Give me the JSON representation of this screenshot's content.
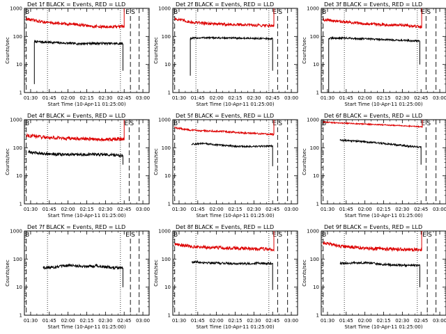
{
  "figure": {
    "background": "#ffffff"
  },
  "common": {
    "ylabel": "Counts/sec",
    "xlabel": "Start Time (10-Apr-11 01:25:00)",
    "x_tick_labels": [
      "01:30",
      "01:45",
      "02:00",
      "02:15",
      "02:30",
      "02:45",
      "03:00"
    ],
    "x_tick_minutes": [
      5,
      20,
      35,
      50,
      65,
      80,
      95
    ],
    "y_tick_labels": [
      "1",
      "10",
      "100",
      "1000"
    ],
    "y_tick_values": [
      1,
      10,
      100,
      1000
    ],
    "xlim_minutes": [
      0,
      100
    ],
    "ylim": [
      1,
      1000
    ],
    "yscale": "log",
    "colors": {
      "events": "#000000",
      "lld": "#dd0000"
    },
    "marker_letters": {
      "start": "B",
      "end_e": "E",
      "end_s": "S"
    }
  },
  "chart_data": [
    {
      "type": "line",
      "title": "Det 1f BLACK = Events, RED = LLD",
      "series": [
        {
          "legend": "BLACK = Events",
          "color": "#000000",
          "x_start": 8.0,
          "x_end": 79.0,
          "y_profile": [
            65,
            62,
            58,
            55,
            57,
            56,
            55
          ],
          "y_at_end": 6,
          "noise": 0.04
        },
        {
          "legend": "RED = LLD",
          "color": "#dd0000",
          "x_start": 1.5,
          "x_end": 80.0,
          "y_profile": [
            420,
            330,
            290,
            270,
            230,
            215,
            225
          ],
          "y_at_end": 210,
          "noise": 0.05
        }
      ],
      "event_bounds": {
        "line_start_x": 8.0,
        "line_end_x": 79.0,
        "black_jump_y": 2
      },
      "markers": {
        "dotted": [
          18.5,
          77.0
        ],
        "dashed": [
          85.0,
          92.0
        ]
      }
    },
    {
      "type": "line",
      "title": "Det 2f BLACK = Events, RED = LLD",
      "series": [
        {
          "legend": "BLACK = Events",
          "color": "#000000",
          "x_start": 14.0,
          "x_end": 80.0,
          "y_profile": [
            85,
            90,
            88,
            87,
            86,
            84,
            82
          ],
          "y_at_end": 6,
          "noise": 0.03
        },
        {
          "legend": "RED = LLD",
          "color": "#dd0000",
          "x_start": 1.5,
          "x_end": 81.0,
          "y_profile": [
            430,
            320,
            290,
            270,
            260,
            250,
            245
          ],
          "y_at_end": 230,
          "noise": 0.05
        }
      ],
      "event_bounds": {
        "line_start_x": 14.0,
        "line_end_x": 80.0,
        "black_jump_y": 4
      },
      "markers": {
        "dotted": [
          18.5,
          77.0
        ],
        "dashed": [
          84.0,
          92.0
        ]
      }
    },
    {
      "type": "line",
      "title": "Det 3f BLACK = Events, RED = LLD",
      "series": [
        {
          "legend": "BLACK = Events",
          "color": "#000000",
          "x_start": 6.0,
          "x_end": 79.0,
          "y_profile": [
            85,
            88,
            83,
            80,
            76,
            72,
            68
          ],
          "y_at_end": 10,
          "noise": 0.03
        },
        {
          "legend": "RED = LLD",
          "color": "#dd0000",
          "x_start": 1.5,
          "x_end": 80.5,
          "y_profile": [
            400,
            340,
            300,
            280,
            260,
            250,
            220
          ],
          "y_at_end": 210,
          "noise": 0.05
        }
      ],
      "event_bounds": {
        "line_start_x": 6.0,
        "line_end_x": 79.0,
        "black_jump_y": 1
      },
      "markers": {
        "dotted": [
          18.5,
          77.0
        ],
        "dashed": [
          84.0,
          92.0
        ]
      }
    },
    {
      "type": "line",
      "title": "Det 4f BLACK = Events, RED = LLD",
      "series": [
        {
          "legend": "BLACK = Events",
          "color": "#000000",
          "x_start": 3.0,
          "x_end": 79.0,
          "y_profile": [
            70,
            62,
            58,
            56,
            58,
            57,
            53
          ],
          "y_at_end": 25,
          "noise": 0.05
        },
        {
          "legend": "RED = LLD",
          "color": "#dd0000",
          "x_start": 1.5,
          "x_end": 80.0,
          "y_profile": [
            280,
            240,
            220,
            210,
            205,
            200,
            205
          ],
          "y_at_end": 190,
          "noise": 0.06
        }
      ],
      "event_bounds": {
        "line_start_x": 3.0,
        "line_end_x": 79.0,
        "black_jump_y": null
      },
      "markers": {
        "dotted": [
          18.5,
          77.0
        ],
        "dashed": [
          84.0,
          92.0
        ]
      }
    },
    {
      "type": "line",
      "title": "Det 5f BLACK = Events, RED = LLD",
      "series": [
        {
          "legend": "BLACK = Events",
          "color": "#000000",
          "x_start": 15.0,
          "x_end": 80.0,
          "y_profile": [
            135,
            140,
            125,
            115,
            110,
            112,
            115
          ],
          "y_at_end": 22,
          "noise": 0.03
        },
        {
          "legend": "RED = LLD",
          "color": "#dd0000",
          "x_start": 1.5,
          "x_end": 81.0,
          "y_profile": [
            520,
            420,
            400,
            380,
            340,
            320,
            300
          ],
          "y_at_end": 310,
          "noise": 0.03
        }
      ],
      "event_bounds": {
        "line_start_x": 15.0,
        "line_end_x": 80.0,
        "black_jump_y": null
      },
      "markers": {
        "dotted": [
          18.5,
          77.0
        ],
        "dashed": [
          84.0,
          92.0
        ]
      }
    },
    {
      "type": "line",
      "title": "Det 6f BLACK = Events, RED = LLD",
      "series": [
        {
          "legend": "BLACK = Events",
          "color": "#000000",
          "x_start": 15.0,
          "x_end": 80.0,
          "y_profile": [
            185,
            175,
            160,
            145,
            130,
            115,
            105
          ],
          "y_at_end": 25,
          "noise": 0.03
        },
        {
          "legend": "RED = LLD",
          "color": "#dd0000",
          "x_start": 1.5,
          "x_end": 81.0,
          "y_profile": [
            820,
            760,
            720,
            680,
            640,
            600,
            560
          ],
          "y_at_end": 520,
          "noise": 0.02
        }
      ],
      "event_bounds": {
        "line_start_x": 15.0,
        "line_end_x": 80.0,
        "black_jump_y": null
      },
      "markers": {
        "dotted": [
          18.5,
          77.0
        ],
        "dashed": [
          84.0,
          92.0
        ]
      }
    },
    {
      "type": "line",
      "title": "Det 7f BLACK = Events, RED = LLD",
      "series": [
        {
          "legend": "BLACK = Events",
          "color": "#000000",
          "x_start": 15.0,
          "x_end": 79.0,
          "y_profile": [
            50,
            52,
            60,
            55,
            58,
            50,
            48
          ],
          "y_at_end": 10,
          "noise": 0.05
        }
      ],
      "event_bounds": {
        "line_start_x": 15.0,
        "line_end_x": 79.0,
        "black_jump_y": null
      },
      "markers": {
        "dotted": [
          18.5,
          77.0
        ],
        "dashed": [
          85.0,
          92.0
        ]
      }
    },
    {
      "type": "line",
      "title": "Det 8f BLACK = Events, RED = LLD",
      "series": [
        {
          "legend": "BLACK = Events",
          "color": "#000000",
          "x_start": 15.0,
          "x_end": 80.0,
          "y_profile": [
            80,
            75,
            72,
            70,
            68,
            72,
            70
          ],
          "y_at_end": 8,
          "noise": 0.04
        },
        {
          "legend": "RED = LLD",
          "color": "#dd0000",
          "x_start": 1.5,
          "x_end": 81.0,
          "y_profile": [
            350,
            280,
            260,
            250,
            240,
            230,
            225
          ],
          "y_at_end": 220,
          "noise": 0.06
        }
      ],
      "event_bounds": {
        "line_start_x": 15.0,
        "line_end_x": 80.0,
        "black_jump_y": null
      },
      "markers": {
        "dotted": [
          18.5,
          77.0
        ],
        "dashed": [
          84.0,
          92.0
        ]
      }
    },
    {
      "type": "line",
      "title": "Det 9f BLACK = Events, RED = LLD",
      "series": [
        {
          "legend": "BLACK = Events",
          "color": "#000000",
          "x_start": 15.0,
          "x_end": 79.0,
          "y_profile": [
            70,
            72,
            75,
            65,
            62,
            60,
            58
          ],
          "y_at_end": 10,
          "noise": 0.04
        },
        {
          "legend": "RED = LLD",
          "color": "#dd0000",
          "x_start": 1.5,
          "x_end": 80.5,
          "y_profile": [
            380,
            290,
            260,
            240,
            230,
            220,
            210
          ],
          "y_at_end": 200,
          "noise": 0.06
        }
      ],
      "event_bounds": {
        "line_start_x": 15.0,
        "line_end_x": 79.0,
        "black_jump_y": null
      },
      "markers": {
        "dotted": [
          18.5,
          77.0
        ],
        "dashed": [
          85.0,
          92.0
        ]
      }
    }
  ]
}
